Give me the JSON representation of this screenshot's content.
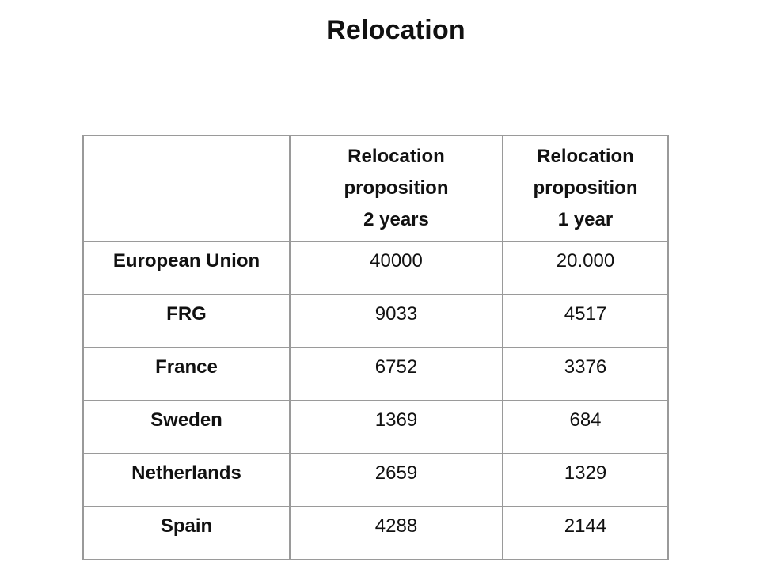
{
  "title": "Relocation",
  "table": {
    "headers": [
      "",
      "Relocation proposition 2 years",
      "Relocation proposition 1 year"
    ],
    "header_lines": {
      "two_years": [
        "Relocation",
        "proposition",
        "2 years"
      ],
      "one_year": [
        "Relocation",
        "proposition",
        "1 year"
      ]
    },
    "rows": [
      {
        "country": "European Union",
        "two_years": "40000",
        "one_year": "20.000"
      },
      {
        "country": "FRG",
        "two_years": "9033",
        "one_year": "4517"
      },
      {
        "country": "France",
        "two_years": "6752",
        "one_year": "3376"
      },
      {
        "country": "Sweden",
        "two_years": "1369",
        "one_year": "684"
      },
      {
        "country": "Netherlands",
        "two_years": "2659",
        "one_year": "1329"
      },
      {
        "country": "Spain",
        "two_years": "4288",
        "one_year": "2144"
      }
    ]
  }
}
